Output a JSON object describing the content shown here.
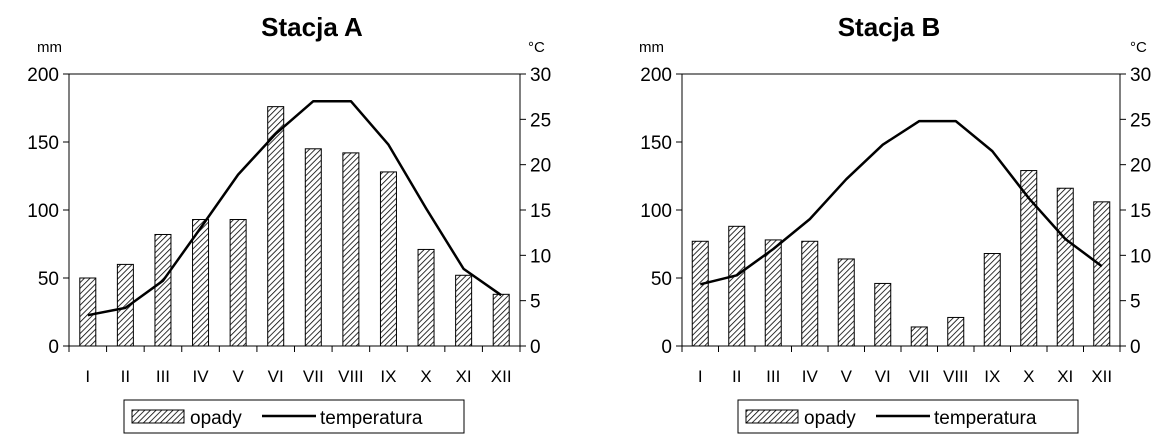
{
  "chart_data": [
    {
      "type": "bar",
      "title": "Stacja A",
      "ylabel_left": "mm",
      "ylabel_right": "°C",
      "categories": [
        "I",
        "II",
        "III",
        "IV",
        "V",
        "VI",
        "VII",
        "VIII",
        "IX",
        "X",
        "XI",
        "XII"
      ],
      "ylim_left": [
        0,
        200
      ],
      "ylim_right": [
        0,
        30
      ],
      "yticks_left": [
        "0",
        "50",
        "100",
        "150",
        "200"
      ],
      "yticks_right": [
        "0",
        "5",
        "10",
        "15",
        "20",
        "25",
        "30"
      ],
      "series": [
        {
          "name": "opady",
          "kind": "bar",
          "axis": "left",
          "values": [
            50,
            60,
            82,
            93,
            93,
            176,
            145,
            142,
            128,
            71,
            52,
            38
          ]
        },
        {
          "name": "temperatura",
          "kind": "line",
          "axis": "right",
          "values": [
            3.4,
            4.2,
            7.2,
            13.0,
            18.9,
            23.4,
            27.0,
            27.0,
            22.2,
            15.2,
            8.5,
            5.6
          ]
        }
      ],
      "legend": [
        "opady",
        "temperatura"
      ],
      "legend_position": "bottom",
      "grid": false
    },
    {
      "type": "bar",
      "title": "Stacja B",
      "ylabel_left": "mm",
      "ylabel_right": "°C",
      "categories": [
        "I",
        "II",
        "III",
        "IV",
        "V",
        "VI",
        "VII",
        "VIII",
        "IX",
        "X",
        "XI",
        "XII"
      ],
      "ylim_left": [
        0,
        200
      ],
      "ylim_right": [
        0,
        30
      ],
      "yticks_left": [
        "0",
        "50",
        "100",
        "150",
        "200"
      ],
      "yticks_right": [
        "0",
        "5",
        "10",
        "15",
        "20",
        "25",
        "30"
      ],
      "series": [
        {
          "name": "opady",
          "kind": "bar",
          "axis": "left",
          "values": [
            77,
            88,
            78,
            77,
            64,
            46,
            14,
            21,
            68,
            129,
            116,
            106
          ]
        },
        {
          "name": "temperatura",
          "kind": "line",
          "axis": "right",
          "values": [
            6.8,
            7.8,
            10.7,
            14.0,
            18.4,
            22.2,
            24.8,
            24.8,
            21.5,
            16.3,
            11.8,
            8.8
          ]
        }
      ],
      "legend": [
        "opady",
        "temperatura"
      ],
      "legend_position": "bottom",
      "grid": false
    }
  ]
}
